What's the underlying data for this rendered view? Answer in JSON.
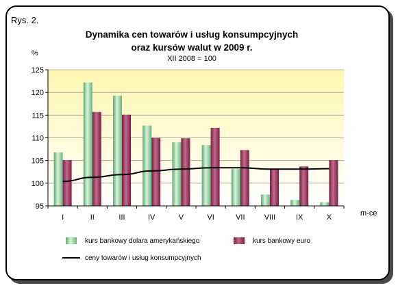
{
  "figure_label": "Rys. 2.",
  "chart_data": {
    "type": "bar",
    "title": "Dynamika cen towarów i usług konsumpcyjnych",
    "title_line2": "oraz kursów walut w 2009 r.",
    "subtitle": "XII 2008 = 100",
    "ylabel": "%",
    "xlabel": "m-ce",
    "ylim": [
      95,
      125
    ],
    "yticks": [
      95,
      100,
      105,
      110,
      115,
      120,
      125
    ],
    "grid": true,
    "legend_position": "bottom",
    "categories": [
      "I",
      "II",
      "III",
      "IV",
      "V",
      "VI",
      "VII",
      "VIII",
      "IX",
      "X"
    ],
    "series": [
      {
        "name": "kurs bankowy dolara amerykańskiego",
        "type": "bar",
        "color": "#8fcf9f",
        "values": [
          106.8,
          122.2,
          119.3,
          112.7,
          109.0,
          108.4,
          103.1,
          97.5,
          96.3,
          95.8
        ]
      },
      {
        "name": "kurs bankowy euro",
        "type": "bar",
        "color": "#a3395e",
        "values": [
          105.1,
          115.7,
          115.1,
          110.0,
          109.9,
          112.2,
          107.3,
          103.1,
          103.7,
          105.1
        ]
      },
      {
        "name": "ceny towarów i usług konsumpcyjnych",
        "type": "line",
        "color": "#000000",
        "values": [
          100.4,
          101.3,
          101.9,
          102.7,
          103.1,
          103.4,
          103.4,
          103.1,
          103.1,
          103.2
        ]
      }
    ],
    "legend_labels": {
      "dollar": "kurs bankowy dolara amerykańskiego",
      "euro": "kurs bankowy euro",
      "cpi": "ceny towarów i usług konsumpcyjnych"
    }
  }
}
